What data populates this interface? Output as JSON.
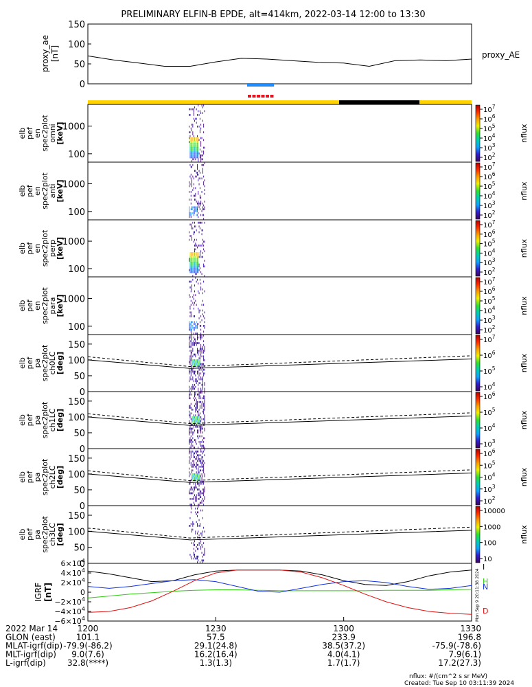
{
  "title": "PRELIMINARY ELFIN-B EPDE, alt=414km, 2022-03-14 12:00 to 13:30",
  "colors": {
    "bar_yellow": "#ffd200",
    "bar_black": "#000000",
    "bar_blue": "#1e8cff",
    "bar_red": "#e8141e",
    "mag_i": "#000000",
    "mag_h": "#2ecc10",
    "mag_n": "#1030dd",
    "mag_d": "#e01010"
  },
  "colorbars": [
    {
      "label": "nflux",
      "ticks": [
        "10^7",
        "10^6",
        "10^5",
        "10^4",
        "10^3",
        "10^2"
      ]
    },
    {
      "label": "nflux",
      "ticks": [
        "10^7",
        "10^6",
        "10^5",
        "10^4",
        "10^3",
        "10^2"
      ]
    },
    {
      "label": "nflux",
      "ticks": [
        "10^7",
        "10^6",
        "10^5",
        "10^4",
        "10^3",
        "10^2"
      ]
    },
    {
      "label": "nflux",
      "ticks": [
        "10^7",
        "10^6",
        "10^5",
        "10^4",
        "10^3",
        "10^2"
      ]
    },
    {
      "label": "nflux",
      "ticks": [
        "10^7",
        "10^6",
        "10^5",
        "10^4"
      ]
    },
    {
      "label": "nflux",
      "ticks": [
        "10^6",
        "10^5",
        "10^4",
        "10^3"
      ]
    },
    {
      "label": "nflux",
      "ticks": [
        "10^6",
        "10^5",
        "10^4",
        "10^3",
        "10^2"
      ]
    },
    {
      "label": "nflux",
      "ticks": [
        "10000",
        "1000",
        "100",
        "10"
      ]
    }
  ],
  "xaxis": {
    "rows": [
      {
        "label": "2022 Mar 14",
        "values": [
          "1200",
          "1230",
          "1300",
          "1330"
        ]
      },
      {
        "label": "GLON (east)",
        "values": [
          "101.1",
          "57.5",
          "233.9",
          "196.8"
        ]
      },
      {
        "label": "MLAT-igrf(dip)",
        "values": [
          "-79.9(-86.2)",
          "29.1(24.8)",
          "38.5(37.2)",
          "-75.9(-78.6)"
        ]
      },
      {
        "label": "MLT-igrf(dip)",
        "values": [
          "9.0(7.6)",
          "16.2(16.4)",
          "4.0(4.1)",
          "7.9(6.1)"
        ]
      },
      {
        "label": "L-igrf(dip)",
        "values": [
          "32.8(****)",
          "1.3(1.3)",
          "1.7(1.7)",
          "17.2(27.3)"
        ]
      }
    ]
  },
  "footer": {
    "units": "nflux: #/(cm^2 s sr MeV)",
    "created": "Created: Tue Sep 10 03:11:39 2024",
    "vertical_stamp": "Mon Sep 9 20:11:38 2024"
  },
  "chart_data": [
    {
      "type": "line",
      "panel": "proxy_ae",
      "ylabel": "proxy_ae [nT]",
      "legend": "proxy_AE",
      "ylim": [
        0,
        150
      ],
      "yticks": [
        "150",
        "100",
        "50",
        "0"
      ],
      "x": [
        0,
        6,
        12,
        18,
        24,
        30,
        36,
        42,
        48,
        54,
        60,
        66,
        72,
        78,
        84,
        90
      ],
      "values": [
        70,
        60,
        52,
        44,
        44,
        55,
        64,
        62,
        58,
        54,
        52,
        44,
        58,
        60,
        58,
        62
      ]
    },
    {
      "type": "heatmap",
      "panel": "en_omni",
      "ylabel": "elb pef en spec2plot omni [keV]",
      "ylog": true,
      "ylim": [
        50,
        6000
      ],
      "yticks": [
        "1000",
        "100"
      ],
      "active_x": [
        23.7,
        27.5
      ]
    },
    {
      "type": "heatmap",
      "panel": "en_anti",
      "ylabel": "elb pef en spec2plot anti [keV]",
      "ylog": true,
      "ylim": [
        50,
        6000
      ],
      "yticks": [
        "1000",
        "100"
      ],
      "active_x": [
        23.7,
        27.5
      ]
    },
    {
      "type": "heatmap",
      "panel": "en_perp",
      "ylabel": "elb pef en spec2plot perp [keV]",
      "ylog": true,
      "ylim": [
        50,
        6000
      ],
      "yticks": [
        "1000",
        "100"
      ],
      "active_x": [
        23.7,
        27.5
      ]
    },
    {
      "type": "heatmap",
      "panel": "en_para",
      "ylabel": "elb pef en spec2plot para [keV]",
      "ylog": true,
      "ylim": [
        50,
        6000
      ],
      "yticks": [
        "1000",
        "100"
      ],
      "active_x": [
        23.7,
        27.5
      ]
    },
    {
      "type": "heatmap",
      "panel": "pa_ch0LC",
      "ylabel": "elb pef pa spec2plot ch0LC [deg]",
      "ylim": [
        0,
        180
      ],
      "yticks": [
        "150",
        "100",
        "50",
        "0"
      ],
      "lc_solid": [
        [
          0,
          100
        ],
        [
          24,
          73
        ],
        [
          90,
          103
        ]
      ],
      "lc_dashed": [
        [
          0,
          110
        ],
        [
          24,
          79
        ],
        [
          90,
          113
        ]
      ]
    },
    {
      "type": "heatmap",
      "panel": "pa_ch1LC",
      "ylabel": "elb pef pa spec2plot ch1LC [deg]",
      "ylim": [
        0,
        180
      ],
      "yticks": [
        "150",
        "100",
        "50",
        "0"
      ],
      "lc_solid": [
        [
          0,
          100
        ],
        [
          24,
          73
        ],
        [
          90,
          103
        ]
      ],
      "lc_dashed": [
        [
          0,
          110
        ],
        [
          24,
          79
        ],
        [
          90,
          113
        ]
      ]
    },
    {
      "type": "heatmap",
      "panel": "pa_ch2LC",
      "ylabel": "elb pef pa spec2plot ch2LC [deg]",
      "ylim": [
        0,
        180
      ],
      "yticks": [
        "150",
        "100",
        "50",
        "0"
      ],
      "lc_solid": [
        [
          0,
          100
        ],
        [
          24,
          73
        ],
        [
          90,
          103
        ]
      ],
      "lc_dashed": [
        [
          0,
          110
        ],
        [
          24,
          79
        ],
        [
          90,
          113
        ]
      ]
    },
    {
      "type": "heatmap",
      "panel": "pa_ch3LC",
      "ylabel": "elb pef pa spec2plot ch3LC [deg]",
      "ylim": [
        0,
        180
      ],
      "yticks": [
        "150",
        "100",
        "50",
        "0"
      ],
      "lc_solid": [
        [
          0,
          100
        ],
        [
          24,
          73
        ],
        [
          90,
          103
        ]
      ],
      "lc_dashed": [
        [
          0,
          110
        ],
        [
          24,
          79
        ],
        [
          90,
          113
        ]
      ]
    },
    {
      "type": "line",
      "panel": "igrf",
      "ylabel": "IGRF [nT]",
      "ylim": [
        -60000,
        60000
      ],
      "yticks": [
        "6×10^4",
        "4×10^4",
        "2×10^4",
        "0",
        "−2×10^4",
        "−4×10^4",
        "−6×10^4"
      ],
      "x": [
        0,
        5,
        10,
        15,
        20,
        25,
        30,
        35,
        40,
        45,
        50,
        55,
        60,
        65,
        70,
        75,
        80,
        85,
        90
      ],
      "series": [
        {
          "name": "I",
          "values": [
            44000,
            38000,
            30000,
            22000,
            24000,
            36000,
            44000,
            46000,
            46000,
            46000,
            44000,
            36000,
            24000,
            16000,
            14000,
            22000,
            34000,
            42000,
            46000
          ]
        },
        {
          "name": "H",
          "values": [
            -12000,
            -8000,
            -4000,
            -1000,
            2000,
            4000,
            5000,
            5000,
            4000,
            3000,
            3000,
            3000,
            3000,
            3000,
            4000,
            4000,
            4000,
            5000,
            6000
          ]
        },
        {
          "name": "N",
          "values": [
            12000,
            8000,
            12000,
            18000,
            24000,
            26000,
            22000,
            12000,
            2000,
            0,
            8000,
            16000,
            22000,
            24000,
            20000,
            12000,
            6000,
            8000,
            14000
          ]
        },
        {
          "name": "D",
          "values": [
            -42000,
            -40000,
            -32000,
            -18000,
            2000,
            24000,
            40000,
            46000,
            46000,
            46000,
            42000,
            30000,
            14000,
            -4000,
            -20000,
            -32000,
            -40000,
            -44000,
            -46000
          ]
        }
      ]
    }
  ]
}
